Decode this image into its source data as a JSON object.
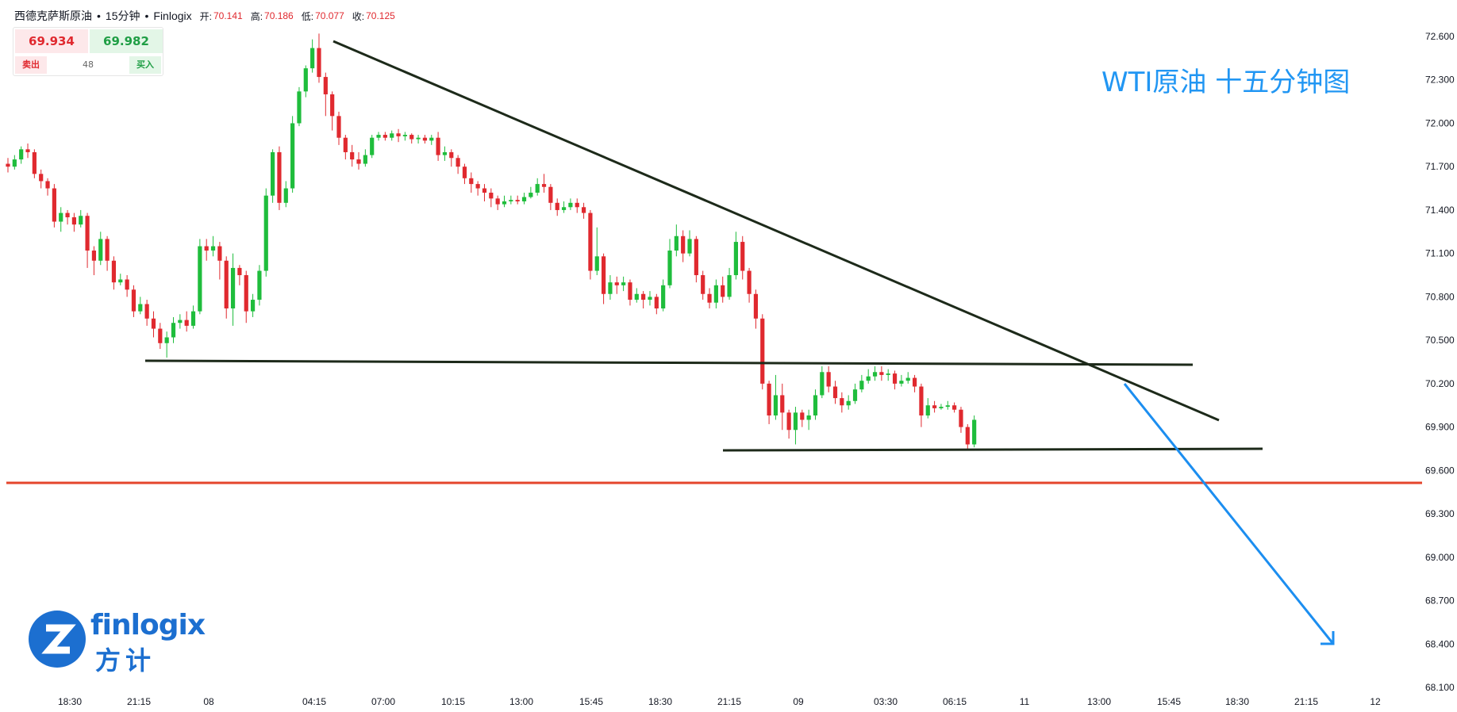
{
  "header": {
    "symbol": "西德克萨斯原油",
    "sep1": "•",
    "interval": "15分钟",
    "sep2": "•",
    "source": "Finlogix",
    "open_label": "开:",
    "open": "70.141",
    "high_label": "高:",
    "high": "70.186",
    "low_label": "低:",
    "low": "70.077",
    "close_label": "收:",
    "close": "70.125"
  },
  "quote": {
    "sell_price": "69.934",
    "buy_price": "69.982",
    "sell_label": "卖出",
    "spread": "48",
    "buy_label": "买入"
  },
  "annotation": {
    "text": "WTI原油 十五分钟图"
  },
  "logo": {
    "en": "finlogix",
    "cn": "方计",
    "glyph": "Z"
  },
  "colors": {
    "up": "#1fbd3c",
    "down": "#e0292f",
    "trendline": "#1d2a1a",
    "support": "#e4452c",
    "arrow": "#1c8ef0",
    "axis_text": "#131722"
  },
  "chart_data": {
    "type": "candlestick",
    "title": "",
    "xlabel": "",
    "ylabel": "",
    "ylim": [
      68.1,
      72.75
    ],
    "y_ticks": [
      "72.600",
      "72.300",
      "72.000",
      "71.700",
      "71.400",
      "71.100",
      "70.800",
      "70.500",
      "70.200",
      "69.900",
      "69.600",
      "69.300",
      "69.000",
      "68.700",
      "68.400",
      "68.100"
    ],
    "x_ticks": [
      "18:30",
      "21:15",
      "08",
      "04:15",
      "07:00",
      "10:15",
      "13:00",
      "15:45",
      "18:30",
      "21:15",
      "09",
      "03:30",
      "06:15",
      "11",
      "13:00",
      "15:45",
      "18:30",
      "21:15",
      "12"
    ],
    "candles": [
      [
        71.72,
        71.7,
        71.76,
        71.66
      ],
      [
        71.7,
        71.75,
        71.78,
        71.68
      ],
      [
        71.75,
        71.82,
        71.84,
        71.72
      ],
      [
        71.82,
        71.8,
        71.86,
        71.76
      ],
      [
        71.8,
        71.65,
        71.82,
        71.62
      ],
      [
        71.65,
        71.6,
        71.68,
        71.55
      ],
      [
        71.6,
        71.55,
        71.62,
        71.5
      ],
      [
        71.55,
        71.32,
        71.58,
        71.28
      ],
      [
        71.32,
        71.38,
        71.42,
        71.25
      ],
      [
        71.38,
        71.35,
        71.4,
        71.3
      ],
      [
        71.35,
        71.3,
        71.38,
        71.25
      ],
      [
        71.3,
        71.36,
        71.4,
        71.28
      ],
      [
        71.36,
        71.12,
        71.38,
        71.0
      ],
      [
        71.12,
        71.05,
        71.15,
        70.95
      ],
      [
        71.05,
        71.2,
        71.25,
        71.02
      ],
      [
        71.2,
        71.05,
        71.22,
        70.98
      ],
      [
        71.05,
        70.9,
        71.08,
        70.85
      ],
      [
        70.9,
        70.92,
        70.96,
        70.88
      ],
      [
        70.92,
        70.85,
        70.95,
        70.8
      ],
      [
        70.85,
        70.7,
        70.88,
        70.66
      ],
      [
        70.7,
        70.75,
        70.8,
        70.68
      ],
      [
        70.75,
        70.65,
        70.78,
        70.6
      ],
      [
        70.65,
        70.58,
        70.7,
        70.52
      ],
      [
        70.58,
        70.48,
        70.62,
        70.44
      ],
      [
        70.48,
        70.52,
        70.56,
        70.38
      ],
      [
        70.52,
        70.62,
        70.66,
        70.48
      ],
      [
        70.62,
        70.64,
        70.68,
        70.58
      ],
      [
        70.64,
        70.6,
        70.7,
        70.56
      ],
      [
        70.6,
        70.7,
        70.74,
        70.58
      ],
      [
        70.7,
        71.15,
        71.2,
        70.68
      ],
      [
        71.15,
        71.12,
        71.2,
        71.05
      ],
      [
        71.12,
        71.15,
        71.22,
        71.08
      ],
      [
        71.15,
        71.05,
        71.18,
        70.92
      ],
      [
        71.05,
        70.72,
        71.08,
        70.65
      ],
      [
        70.72,
        71.0,
        71.1,
        70.6
      ],
      [
        71.0,
        70.95,
        71.02,
        70.88
      ],
      [
        70.95,
        70.7,
        70.98,
        70.62
      ],
      [
        70.7,
        70.78,
        70.82,
        70.66
      ],
      [
        70.78,
        70.98,
        71.02,
        70.74
      ],
      [
        70.98,
        71.5,
        71.55,
        70.94
      ],
      [
        71.5,
        71.8,
        71.82,
        71.45
      ],
      [
        71.8,
        71.45,
        71.84,
        71.4
      ],
      [
        71.45,
        71.55,
        71.6,
        71.42
      ],
      [
        71.55,
        72.0,
        72.05,
        71.52
      ],
      [
        72.0,
        72.22,
        72.25,
        71.98
      ],
      [
        72.22,
        72.38,
        72.4,
        72.18
      ],
      [
        72.38,
        72.52,
        72.58,
        72.35
      ],
      [
        72.52,
        72.32,
        72.62,
        72.28
      ],
      [
        72.32,
        72.2,
        72.35,
        72.05
      ],
      [
        72.2,
        72.05,
        72.22,
        71.95
      ],
      [
        72.05,
        71.9,
        72.08,
        71.85
      ],
      [
        71.9,
        71.8,
        71.92,
        71.75
      ],
      [
        71.8,
        71.75,
        71.85,
        71.7
      ],
      [
        71.75,
        71.72,
        71.8,
        71.68
      ],
      [
        71.72,
        71.78,
        71.82,
        71.7
      ],
      [
        71.78,
        71.9,
        71.92,
        71.76
      ],
      [
        71.9,
        71.92,
        71.94,
        71.88
      ],
      [
        71.92,
        71.9,
        71.94,
        71.88
      ],
      [
        71.9,
        71.93,
        71.95,
        71.88
      ],
      [
        71.93,
        71.91,
        71.96,
        71.87
      ],
      [
        71.91,
        71.92,
        71.94,
        71.88
      ],
      [
        71.92,
        71.89,
        71.93,
        71.86
      ],
      [
        71.89,
        71.9,
        71.92,
        71.86
      ],
      [
        71.9,
        71.88,
        71.92,
        71.86
      ],
      [
        71.88,
        71.9,
        71.92,
        71.85
      ],
      [
        71.9,
        71.78,
        71.94,
        71.74
      ],
      [
        71.78,
        71.8,
        71.84,
        71.74
      ],
      [
        71.8,
        71.76,
        71.82,
        71.7
      ],
      [
        71.76,
        71.7,
        71.78,
        71.65
      ],
      [
        71.7,
        71.62,
        71.72,
        71.58
      ],
      [
        71.62,
        71.58,
        71.66,
        71.52
      ],
      [
        71.58,
        71.55,
        71.6,
        71.5
      ],
      [
        71.55,
        71.52,
        71.58,
        71.46
      ],
      [
        71.52,
        71.48,
        71.55,
        71.42
      ],
      [
        71.48,
        71.44,
        71.5,
        71.4
      ],
      [
        71.44,
        71.46,
        71.5,
        71.42
      ],
      [
        71.46,
        71.47,
        71.5,
        71.44
      ],
      [
        71.47,
        71.46,
        71.5,
        71.44
      ],
      [
        71.46,
        71.49,
        71.52,
        71.44
      ],
      [
        71.49,
        71.52,
        71.56,
        71.48
      ],
      [
        71.52,
        71.58,
        71.62,
        71.5
      ],
      [
        71.58,
        71.56,
        71.65,
        71.52
      ],
      [
        71.56,
        71.45,
        71.58,
        71.4
      ],
      [
        71.45,
        71.4,
        71.48,
        71.36
      ],
      [
        71.4,
        71.42,
        71.46,
        71.38
      ],
      [
        71.42,
        71.45,
        71.48,
        71.4
      ],
      [
        71.45,
        71.42,
        71.48,
        71.38
      ],
      [
        71.42,
        71.38,
        71.45,
        71.34
      ],
      [
        71.38,
        70.98,
        71.4,
        70.92
      ],
      [
        70.98,
        71.08,
        71.28,
        70.95
      ],
      [
        71.08,
        70.82,
        71.1,
        70.75
      ],
      [
        70.82,
        70.9,
        70.95,
        70.78
      ],
      [
        70.9,
        70.88,
        70.94,
        70.82
      ],
      [
        70.88,
        70.9,
        70.94,
        70.84
      ],
      [
        70.9,
        70.78,
        70.92,
        70.74
      ],
      [
        70.78,
        70.82,
        70.86,
        70.76
      ],
      [
        70.82,
        70.78,
        70.84,
        70.72
      ],
      [
        70.78,
        70.8,
        70.84,
        70.74
      ],
      [
        70.8,
        70.72,
        70.82,
        70.68
      ],
      [
        70.72,
        70.88,
        70.92,
        70.7
      ],
      [
        70.88,
        71.12,
        71.2,
        70.86
      ],
      [
        71.12,
        71.22,
        71.3,
        71.08
      ],
      [
        71.22,
        71.1,
        71.26,
        71.04
      ],
      [
        71.1,
        71.2,
        71.26,
        71.08
      ],
      [
        71.2,
        70.95,
        71.22,
        70.9
      ],
      [
        70.95,
        70.82,
        70.98,
        70.78
      ],
      [
        70.82,
        70.76,
        70.86,
        70.72
      ],
      [
        70.76,
        70.88,
        70.92,
        70.72
      ],
      [
        70.88,
        70.8,
        70.94,
        70.76
      ],
      [
        70.8,
        70.95,
        71.0,
        70.78
      ],
      [
        70.95,
        71.18,
        71.25,
        70.92
      ],
      [
        71.18,
        70.98,
        71.22,
        70.92
      ],
      [
        70.98,
        70.82,
        71.0,
        70.76
      ],
      [
        70.82,
        70.65,
        70.85,
        70.58
      ],
      [
        70.65,
        70.2,
        70.68,
        70.16
      ],
      [
        70.2,
        69.98,
        70.22,
        69.92
      ],
      [
        69.98,
        70.12,
        70.26,
        69.95
      ],
      [
        70.12,
        70.0,
        70.2,
        69.88
      ],
      [
        70.0,
        69.88,
        70.02,
        69.82
      ],
      [
        69.88,
        70.0,
        70.04,
        69.78
      ],
      [
        70.0,
        69.95,
        70.02,
        69.9
      ],
      [
        69.95,
        69.98,
        70.02,
        69.88
      ],
      [
        69.98,
        70.12,
        70.16,
        69.95
      ],
      [
        70.12,
        70.28,
        70.32,
        70.1
      ],
      [
        70.28,
        70.18,
        70.32,
        70.14
      ],
      [
        70.18,
        70.1,
        70.22,
        70.06
      ],
      [
        70.1,
        70.05,
        70.14,
        70.0
      ],
      [
        70.05,
        70.08,
        70.12,
        70.02
      ],
      [
        70.08,
        70.16,
        70.2,
        70.06
      ],
      [
        70.16,
        70.22,
        70.26,
        70.14
      ],
      [
        70.22,
        70.25,
        70.3,
        70.2
      ],
      [
        70.25,
        70.28,
        70.32,
        70.22
      ],
      [
        70.28,
        70.26,
        70.32,
        70.22
      ],
      [
        70.26,
        70.27,
        70.3,
        70.22
      ],
      [
        70.27,
        70.2,
        70.29,
        70.16
      ],
      [
        70.2,
        70.22,
        70.26,
        70.18
      ],
      [
        70.22,
        70.24,
        70.28,
        70.2
      ],
      [
        70.24,
        70.18,
        70.26,
        70.14
      ],
      [
        70.18,
        69.98,
        70.2,
        69.9
      ],
      [
        69.98,
        70.05,
        70.1,
        69.96
      ],
      [
        70.05,
        70.03,
        70.08,
        70.0
      ],
      [
        70.03,
        70.04,
        70.06,
        70.02
      ],
      [
        70.04,
        70.05,
        70.08,
        70.02
      ],
      [
        70.05,
        70.02,
        70.07,
        70.0
      ],
      [
        70.02,
        69.9,
        70.04,
        69.86
      ],
      [
        69.9,
        69.78,
        69.92,
        69.75
      ],
      [
        69.78,
        69.95,
        69.98,
        69.76
      ]
    ],
    "trendlines": [
      {
        "from": [
          "2024-07-08 05:00",
          72.58
        ],
        "to": [
          "2024-07-11 20:15",
          69.95
        ],
        "kind": "resistance"
      },
      {
        "from": [
          "2024-07-08 00:15",
          70.35
        ],
        "to": [
          "2024-07-11 18:00",
          70.33
        ],
        "kind": "range-top"
      },
      {
        "from": [
          "2024-07-09 18:15",
          69.75
        ],
        "to": [
          "2024-07-11 21:30",
          69.75
        ],
        "kind": "range-bottom"
      },
      {
        "from": [
          "start",
          69.52
        ],
        "to": [
          "end",
          69.52
        ],
        "kind": "support"
      }
    ],
    "arrow": {
      "from": [
        "2024-07-11 15:00",
        70.2
      ],
      "to": [
        "2024-07-12 05:00",
        68.4
      ],
      "direction": "down"
    },
    "grid": false,
    "legend": "none"
  }
}
